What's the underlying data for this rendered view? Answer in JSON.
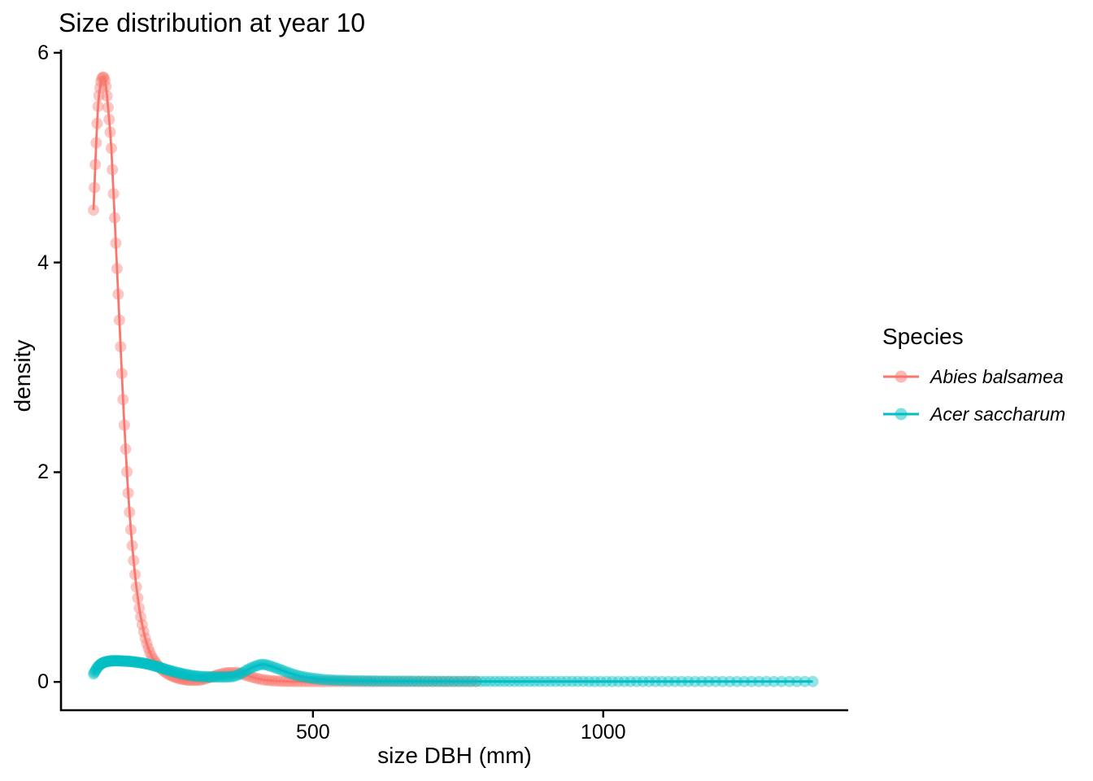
{
  "title": "Size distribution at year 10",
  "axes": {
    "x": {
      "label": "size DBH (mm)"
    },
    "y": {
      "label": "density"
    }
  },
  "legend": {
    "title": "Species",
    "items": [
      {
        "label": "Abies balsamea",
        "color": "#F8766D"
      },
      {
        "label": "Acer saccharum",
        "color": "#00BFC4"
      }
    ]
  },
  "chart_data": {
    "type": "line",
    "title": "Size distribution at year 10",
    "xlabel": "size DBH (mm)",
    "ylabel": "density",
    "xlim": [
      66,
      1422
    ],
    "ylim": [
      -0.27,
      6.03
    ],
    "x_ticks": [
      500,
      1000
    ],
    "y_ticks": [
      0,
      2,
      4,
      6
    ],
    "grid": false,
    "legend_position": "right",
    "legend_title": "Species",
    "series": [
      {
        "name": "Abies balsamea",
        "color": "#F8766D",
        "marker": "circle",
        "marker_opacity": 0.42,
        "mesh": {
          "n": 150,
          "spacing": "log",
          "x_min": 122,
          "x_max": 781
        },
        "anchors": [
          [
            122,
            4.5
          ],
          [
            124,
            4.78
          ],
          [
            126,
            5.06
          ],
          [
            128,
            5.3
          ],
          [
            130,
            5.5
          ],
          [
            133,
            5.66
          ],
          [
            136,
            5.75
          ],
          [
            139,
            5.77
          ],
          [
            142,
            5.73
          ],
          [
            145,
            5.6
          ],
          [
            148,
            5.42
          ],
          [
            152,
            5.15
          ],
          [
            157,
            4.6
          ],
          [
            162,
            4.0
          ],
          [
            167,
            3.4
          ],
          [
            172,
            2.8
          ],
          [
            177,
            2.25
          ],
          [
            183,
            1.7
          ],
          [
            189,
            1.28
          ],
          [
            196,
            0.9
          ],
          [
            204,
            0.6
          ],
          [
            213,
            0.38
          ],
          [
            223,
            0.235
          ],
          [
            234,
            0.15
          ],
          [
            246,
            0.092
          ],
          [
            259,
            0.052
          ],
          [
            273,
            0.028
          ],
          [
            288,
            0.016
          ],
          [
            302,
            0.016
          ],
          [
            318,
            0.036
          ],
          [
            336,
            0.066
          ],
          [
            355,
            0.088
          ],
          [
            368,
            0.088
          ],
          [
            385,
            0.062
          ],
          [
            402,
            0.035
          ],
          [
            420,
            0.016
          ],
          [
            440,
            0.008
          ],
          [
            465,
            0.004
          ],
          [
            500,
            0.003
          ],
          [
            560,
            0.003
          ],
          [
            650,
            0.003
          ],
          [
            781,
            0.003
          ]
        ]
      },
      {
        "name": "Acer saccharum",
        "color": "#00BFC4",
        "marker": "circle",
        "marker_opacity": 0.42,
        "mesh": {
          "n": 240,
          "spacing": "log",
          "x_min": 122,
          "x_max": 1361
        },
        "anchors": [
          [
            122,
            0.075
          ],
          [
            125,
            0.105
          ],
          [
            129,
            0.14
          ],
          [
            134,
            0.168
          ],
          [
            140,
            0.186
          ],
          [
            148,
            0.197
          ],
          [
            158,
            0.202
          ],
          [
            170,
            0.2
          ],
          [
            185,
            0.195
          ],
          [
            200,
            0.185
          ],
          [
            215,
            0.17
          ],
          [
            230,
            0.148
          ],
          [
            245,
            0.122
          ],
          [
            260,
            0.098
          ],
          [
            280,
            0.072
          ],
          [
            300,
            0.055
          ],
          [
            320,
            0.048
          ],
          [
            340,
            0.047
          ],
          [
            360,
            0.05
          ],
          [
            373,
            0.072
          ],
          [
            388,
            0.118
          ],
          [
            402,
            0.152
          ],
          [
            413,
            0.168
          ],
          [
            428,
            0.148
          ],
          [
            445,
            0.115
          ],
          [
            462,
            0.08
          ],
          [
            480,
            0.052
          ],
          [
            500,
            0.034
          ],
          [
            520,
            0.022
          ],
          [
            545,
            0.015
          ],
          [
            580,
            0.011
          ],
          [
            630,
            0.008
          ],
          [
            700,
            0.006
          ],
          [
            800,
            0.005
          ],
          [
            900,
            0.005
          ],
          [
            1000,
            0.004
          ],
          [
            1100,
            0.004
          ],
          [
            1200,
            0.004
          ],
          [
            1300,
            0.004
          ],
          [
            1361,
            0.004
          ]
        ]
      }
    ]
  }
}
